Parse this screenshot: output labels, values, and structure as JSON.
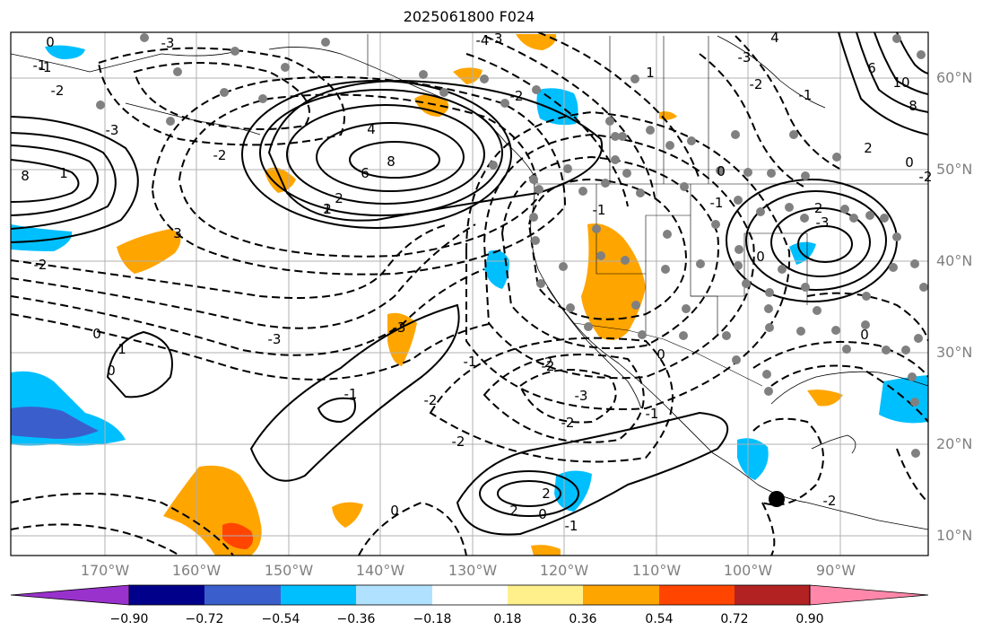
{
  "title": "2025061800 F024",
  "lat_labels": [
    "60°N",
    "50°N",
    "40°N",
    "30°N",
    "20°N",
    "10°N"
  ],
  "lon_labels": [
    "170°W",
    "160°W",
    "150°W",
    "140°W",
    "130°W",
    "120°W",
    "110°W",
    "100°W",
    "90°W"
  ],
  "colorbar": {
    "ticks": [
      "−0.90",
      "−0.72",
      "−0.54",
      "−0.36",
      "−0.18",
      "0.18",
      "0.36",
      "0.54",
      "0.72",
      "0.90"
    ],
    "colors": [
      "#9932cc",
      "#00008b",
      "#3a5fcd",
      "#00bfff",
      "#b0e2ff",
      "#ffffff",
      "#fff08c",
      "#ffa500",
      "#ff4500",
      "#b22222",
      "#ff88aa"
    ]
  },
  "contour_labels": {
    "l1": "2",
    "l2": "4",
    "l3": "6",
    "l4": "8",
    "l5": "2",
    "l6": "3",
    "l7": "2",
    "l8": "1",
    "l9": "-2",
    "l10": "-3",
    "l11": "-4",
    "l12": "-1",
    "l13": "0",
    "l14": "-1",
    "l15": "-2",
    "l16": "-3",
    "l17": "-2",
    "l18": "1",
    "l19": "0",
    "l20": "-2",
    "l21": "2",
    "l22": "0",
    "l23": "-3",
    "l24": "-1",
    "l25": "-2",
    "l26": "-3",
    "l27": "-2",
    "l28": "-2",
    "l29": "2",
    "l30": "0",
    "l31": "-1",
    "l32": "-2",
    "l33": "-1",
    "l34": "0",
    "l35": "-1",
    "l36": "-3",
    "l37": "1",
    "l38": "0",
    "l39": "6",
    "l40": "8",
    "l41": "10",
    "l42": "4",
    "l43": "8",
    "l44": "-2",
    "l45": "2",
    "l46": "-3",
    "l47": "0",
    "l48": "0",
    "l49": "-2",
    "l50": "-1",
    "l51": "0",
    "l52": "-1",
    "l53": "-2",
    "l54": "0",
    "l55": "-2",
    "l56": "-3",
    "l57": "1",
    "l58": "-2",
    "l59": "-1",
    "l60": "-3"
  },
  "colors": {
    "gray_dots": "#808080",
    "gridline": "#b0b0b0"
  }
}
